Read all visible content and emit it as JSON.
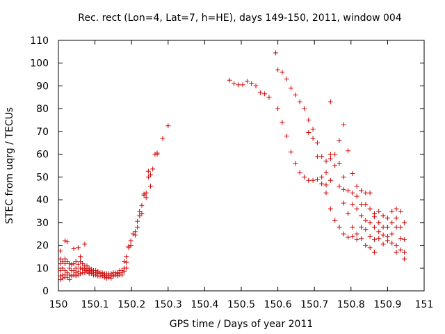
{
  "chart_data": {
    "type": "scatter",
    "title": "Rec. rect (Lon=4, Lat=7, h=HE), days 149-150, 2011, window 004",
    "xlabel": "GPS time / Days of year 2011",
    "ylabel": "STEC from uqrg / TECUs",
    "xlim": [
      150,
      151
    ],
    "ylim": [
      0,
      110
    ],
    "xticks": [
      150,
      150.1,
      150.2,
      150.3,
      150.4,
      150.5,
      150.6,
      150.7,
      150.8,
      150.9,
      151
    ],
    "xtick_labels": [
      "150",
      "150.1",
      "150.2",
      "150.3",
      "150.4",
      "150.5",
      "150.6",
      "150.7",
      "150.8",
      "150.9",
      "151"
    ],
    "yticks": [
      0,
      10,
      20,
      30,
      40,
      50,
      60,
      70,
      80,
      90,
      100,
      110
    ],
    "ytick_labels": [
      "0",
      "10",
      "20",
      "30",
      "40",
      "50",
      "60",
      "70",
      "80",
      "90",
      "100",
      "110"
    ],
    "grid": false,
    "legend": "none",
    "marker": "+",
    "color": "#cc0000",
    "series": [
      {
        "points": [
          [
            150.005,
            17.5
          ],
          [
            150.005,
            14
          ],
          [
            150.005,
            12
          ],
          [
            150.005,
            9
          ],
          [
            150.005,
            6.5
          ],
          [
            150.005,
            5
          ],
          [
            150.012,
            13
          ],
          [
            150.012,
            10
          ],
          [
            150.012,
            7
          ],
          [
            150.012,
            5.5
          ],
          [
            150.018,
            22
          ],
          [
            150.018,
            14
          ],
          [
            150.018,
            12
          ],
          [
            150.018,
            9
          ],
          [
            150.018,
            7
          ],
          [
            150.018,
            6
          ],
          [
            150.024,
            21.5
          ],
          [
            150.024,
            13
          ],
          [
            150.024,
            8
          ],
          [
            150.024,
            6
          ],
          [
            150.03,
            12
          ],
          [
            150.03,
            10
          ],
          [
            150.03,
            7
          ],
          [
            150.03,
            5
          ],
          [
            150.036,
            11.5
          ],
          [
            150.036,
            9
          ],
          [
            150.036,
            6.5
          ],
          [
            150.042,
            18.5
          ],
          [
            150.042,
            12
          ],
          [
            150.042,
            9
          ],
          [
            150.042,
            7
          ],
          [
            150.048,
            13
          ],
          [
            150.048,
            10
          ],
          [
            150.048,
            8
          ],
          [
            150.048,
            6.5
          ],
          [
            150.054,
            19
          ],
          [
            150.054,
            11.5
          ],
          [
            150.054,
            8.5
          ],
          [
            150.054,
            7
          ],
          [
            150.06,
            15
          ],
          [
            150.06,
            13
          ],
          [
            150.06,
            10
          ],
          [
            150.06,
            7.5
          ],
          [
            150.066,
            12
          ],
          [
            150.066,
            9.5
          ],
          [
            150.066,
            8
          ],
          [
            150.072,
            20.5
          ],
          [
            150.072,
            11
          ],
          [
            150.072,
            10
          ],
          [
            150.072,
            9
          ],
          [
            150.072,
            8
          ],
          [
            150.078,
            11
          ],
          [
            150.078,
            9.5
          ],
          [
            150.078,
            8.5
          ],
          [
            150.084,
            10
          ],
          [
            150.084,
            9
          ],
          [
            150.084,
            8
          ],
          [
            150.084,
            7.5
          ],
          [
            150.09,
            9.5
          ],
          [
            150.09,
            8.5
          ],
          [
            150.09,
            7.5
          ],
          [
            150.096,
            9
          ],
          [
            150.096,
            8
          ],
          [
            150.096,
            7
          ],
          [
            150.102,
            9
          ],
          [
            150.102,
            8
          ],
          [
            150.102,
            7
          ],
          [
            150.108,
            8.5
          ],
          [
            150.108,
            7.5
          ],
          [
            150.108,
            6.5
          ],
          [
            150.114,
            8
          ],
          [
            150.114,
            7.5
          ],
          [
            150.114,
            6.5
          ],
          [
            150.12,
            8
          ],
          [
            150.12,
            7
          ],
          [
            150.12,
            6.5
          ],
          [
            150.126,
            7.5
          ],
          [
            150.126,
            7
          ],
          [
            150.126,
            6
          ],
          [
            150.132,
            7.5
          ],
          [
            150.132,
            6.5
          ],
          [
            150.132,
            5.5
          ],
          [
            150.138,
            7.5
          ],
          [
            150.138,
            7
          ],
          [
            150.138,
            6
          ],
          [
            150.144,
            7.5
          ],
          [
            150.144,
            6.5
          ],
          [
            150.144,
            5.5
          ],
          [
            150.15,
            8
          ],
          [
            150.15,
            7
          ],
          [
            150.15,
            6.5
          ],
          [
            150.156,
            8
          ],
          [
            150.156,
            7
          ],
          [
            150.162,
            8
          ],
          [
            150.162,
            7.5
          ],
          [
            150.162,
            6.5
          ],
          [
            150.168,
            9
          ],
          [
            150.168,
            8
          ],
          [
            150.168,
            7
          ],
          [
            150.174,
            9
          ],
          [
            150.174,
            8
          ],
          [
            150.174,
            7
          ],
          [
            150.18,
            13
          ],
          [
            150.18,
            10
          ],
          [
            150.18,
            8.5
          ],
          [
            150.186,
            15
          ],
          [
            150.186,
            12.5
          ],
          [
            150.186,
            10
          ],
          [
            150.192,
            19
          ],
          [
            150.192,
            19.5
          ],
          [
            150.198,
            22
          ],
          [
            150.198,
            20
          ],
          [
            150.204,
            25
          ],
          [
            150.21,
            24.5
          ],
          [
            150.21,
            26
          ],
          [
            150.216,
            28
          ],
          [
            150.216,
            30.5
          ],
          [
            150.222,
            33
          ],
          [
            150.222,
            35
          ],
          [
            150.228,
            34
          ],
          [
            150.228,
            37.5
          ],
          [
            150.234,
            42
          ],
          [
            150.234,
            42.5
          ],
          [
            150.24,
            41
          ],
          [
            150.24,
            43
          ],
          [
            150.246,
            50
          ],
          [
            150.246,
            52.5
          ],
          [
            150.252,
            46
          ],
          [
            150.252,
            51
          ],
          [
            150.258,
            53.5
          ],
          [
            150.264,
            60
          ],
          [
            150.27,
            60
          ],
          [
            150.27,
            60.5
          ],
          [
            150.285,
            67
          ],
          [
            150.3,
            72.5
          ],
          [
            150.468,
            92.5
          ],
          [
            150.48,
            91
          ],
          [
            150.492,
            90.5
          ],
          [
            150.504,
            90.5
          ],
          [
            150.516,
            92
          ],
          [
            150.528,
            91
          ],
          [
            150.54,
            90
          ],
          [
            150.552,
            87
          ],
          [
            150.564,
            86.5
          ],
          [
            150.576,
            85
          ],
          [
            150.594,
            104.5
          ],
          [
            150.6,
            97
          ],
          [
            150.6,
            80
          ],
          [
            150.612,
            96
          ],
          [
            150.612,
            74
          ],
          [
            150.624,
            93
          ],
          [
            150.624,
            68
          ],
          [
            150.636,
            89
          ],
          [
            150.636,
            61
          ],
          [
            150.648,
            86
          ],
          [
            150.648,
            56
          ],
          [
            150.66,
            83
          ],
          [
            150.66,
            52
          ],
          [
            150.672,
            80
          ],
          [
            150.672,
            50
          ],
          [
            150.684,
            75
          ],
          [
            150.684,
            69.5
          ],
          [
            150.684,
            48.5
          ],
          [
            150.696,
            71
          ],
          [
            150.696,
            67
          ],
          [
            150.696,
            48.5
          ],
          [
            150.708,
            65
          ],
          [
            150.708,
            59
          ],
          [
            150.708,
            49
          ],
          [
            150.72,
            59
          ],
          [
            150.72,
            50
          ],
          [
            150.72,
            47
          ],
          [
            150.732,
            57
          ],
          [
            150.732,
            52
          ],
          [
            150.732,
            46.5
          ],
          [
            150.732,
            43
          ],
          [
            150.744,
            83
          ],
          [
            150.744,
            60
          ],
          [
            150.744,
            58
          ],
          [
            150.744,
            48.5
          ],
          [
            150.744,
            36
          ],
          [
            150.756,
            60
          ],
          [
            150.756,
            55
          ],
          [
            150.756,
            31
          ],
          [
            150.768,
            66
          ],
          [
            150.768,
            56
          ],
          [
            150.768,
            46
          ],
          [
            150.768,
            28
          ],
          [
            150.78,
            73
          ],
          [
            150.78,
            50
          ],
          [
            150.78,
            44.5
          ],
          [
            150.78,
            38.5
          ],
          [
            150.78,
            25
          ],
          [
            150.792,
            61.5
          ],
          [
            150.792,
            44
          ],
          [
            150.792,
            34
          ],
          [
            150.792,
            23.5
          ],
          [
            150.804,
            51.5
          ],
          [
            150.804,
            43
          ],
          [
            150.804,
            38
          ],
          [
            150.804,
            28
          ],
          [
            150.804,
            24
          ],
          [
            150.816,
            46
          ],
          [
            150.816,
            41.5
          ],
          [
            150.816,
            36
          ],
          [
            150.816,
            25
          ],
          [
            150.816,
            22.5
          ],
          [
            150.828,
            44
          ],
          [
            150.828,
            38
          ],
          [
            150.828,
            33
          ],
          [
            150.828,
            28
          ],
          [
            150.828,
            23
          ],
          [
            150.84,
            43
          ],
          [
            150.84,
            38
          ],
          [
            150.84,
            31
          ],
          [
            150.84,
            27
          ],
          [
            150.84,
            20
          ],
          [
            150.852,
            43
          ],
          [
            150.852,
            36
          ],
          [
            150.852,
            30
          ],
          [
            150.852,
            24
          ],
          [
            150.852,
            19
          ],
          [
            150.864,
            34
          ],
          [
            150.864,
            32.5
          ],
          [
            150.864,
            28
          ],
          [
            150.864,
            22.5
          ],
          [
            150.864,
            17
          ],
          [
            150.876,
            35
          ],
          [
            150.876,
            30
          ],
          [
            150.876,
            26
          ],
          [
            150.876,
            23
          ],
          [
            150.888,
            33
          ],
          [
            150.888,
            28
          ],
          [
            150.888,
            24.5
          ],
          [
            150.888,
            20.5
          ],
          [
            150.9,
            32
          ],
          [
            150.9,
            28
          ],
          [
            150.9,
            24
          ],
          [
            150.9,
            22
          ],
          [
            150.912,
            35
          ],
          [
            150.912,
            30
          ],
          [
            150.912,
            25
          ],
          [
            150.912,
            21
          ],
          [
            150.924,
            36
          ],
          [
            150.924,
            32
          ],
          [
            150.924,
            28
          ],
          [
            150.924,
            20
          ],
          [
            150.924,
            17
          ],
          [
            150.936,
            35
          ],
          [
            150.936,
            28
          ],
          [
            150.936,
            23
          ],
          [
            150.936,
            18
          ],
          [
            150.946,
            30
          ],
          [
            150.946,
            22.5
          ],
          [
            150.946,
            17
          ],
          [
            150.946,
            14
          ]
        ]
      }
    ]
  }
}
